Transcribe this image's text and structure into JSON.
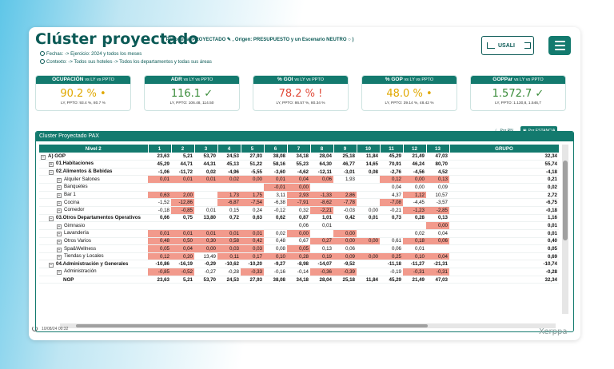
{
  "header": {
    "title": "Clúster proyectado",
    "subtitle": "( Panorama: PROYECTADO ✎ , Origen: PRESUPUESTO y un Escenario NEUTRO ○ )",
    "fechas": "Fechas: -> Ejercicio: 2024 y todos los meses",
    "contexto": "Contexto: -> Todos sus hoteles -> Todos los departamentos y todas sus áreas",
    "user_label": "USALI"
  },
  "kpis": [
    {
      "label": "OCUPACIÓN",
      "sub": "vs LY vs PPTO",
      "value": "90.2 %",
      "mark": "•",
      "color": "#e0a800",
      "note": "LY, PPTO: 93.4 %, 80.7 %"
    },
    {
      "label": "ADR",
      "sub": "vs LY vs PPTO",
      "value": "116.1",
      "mark": "✓",
      "color": "#3a8c3a",
      "note": "LY, PPTO: 106.48, 114.50"
    },
    {
      "label": "% GOI",
      "sub": "vs LY vs PPTO",
      "value": "78.2 %",
      "mark": "!",
      "color": "#e04b3a",
      "note": "LY, PPTO: 86.57 %, 80.34 %"
    },
    {
      "label": "% GOP",
      "sub": "vs LY vs PPTO",
      "value": "48.0 %",
      "mark": "•",
      "color": "#e0a800",
      "note": "LY, PPTO: 39.14 %, 48.42 %"
    },
    {
      "label": "GOPPar",
      "sub": "vs LY vs PPTO",
      "value": "1.572.7",
      "mark": "✓",
      "color": "#3a8c3a",
      "note": "LY, PPTO: 1.130,8, 1.546,7"
    }
  ],
  "panel": {
    "title": "Cluster Proyectado PAX",
    "toggle_rn": "Por RN",
    "toggle_estancia": "Por ESTANCIA"
  },
  "table": {
    "columns": [
      "Nivel 2",
      "1",
      "2",
      "3",
      "4",
      "5",
      "6",
      "7",
      "8",
      "9",
      "10",
      "11",
      "12",
      "13",
      "GRUPO"
    ],
    "rows": [
      {
        "label": "A) GOP",
        "pm": "−",
        "level": 1,
        "bold": true,
        "values": [
          "23,63",
          "5,21",
          "53,70",
          "24,53",
          "27,93",
          "38,08",
          "34,18",
          "28,04",
          "25,18",
          "11,84",
          "45,29",
          "21,49",
          "47,03",
          "32,34"
        ],
        "neg": []
      },
      {
        "label": "01.Habitaciones",
        "pm": "+",
        "level": 2,
        "bold": true,
        "values": [
          "45,29",
          "44,71",
          "44,31",
          "45,13",
          "51,22",
          "58,16",
          "55,23",
          "64,30",
          "46,77",
          "14,65",
          "70,91",
          "46,24",
          "80,70",
          "55,74"
        ],
        "neg": []
      },
      {
        "label": "02.Alimentos & Bebidas",
        "pm": "−",
        "level": 2,
        "bold": true,
        "values": [
          "-1,06",
          "-11,72",
          "0,02",
          "-4,96",
          "-5,55",
          "-3,60",
          "-4,62",
          "-12,11",
          "-3,01",
          "0,08",
          "-2,76",
          "-4,56",
          "4,52",
          "-4,18"
        ],
        "neg": []
      },
      {
        "label": "Alquiler Salones",
        "pm": "+",
        "level": 3,
        "bold": false,
        "values": [
          "0,01",
          "0,01",
          "0,01",
          "0,02",
          "0,00",
          "0,01",
          "0,04",
          "0,06",
          "1,93",
          "",
          "0,12",
          "0,00",
          "0,13",
          "0,21"
        ],
        "neg": [
          0,
          1,
          2,
          3,
          4,
          5,
          6,
          7,
          10,
          11,
          12
        ]
      },
      {
        "label": "Banquetes",
        "pm": "+",
        "level": 3,
        "bold": false,
        "values": [
          "",
          "",
          "",
          "",
          "",
          "-0,01",
          "0,00",
          "",
          "",
          "",
          "0,04",
          "0,00",
          "0,09",
          "0,02"
        ],
        "neg": [
          5,
          6
        ]
      },
      {
        "label": "Bar 1",
        "pm": "+",
        "level": 3,
        "bold": false,
        "values": [
          "0,63",
          "2,00",
          "",
          "1,73",
          "1,75",
          "3,11",
          "2,93",
          "-1,33",
          "2,86",
          "",
          "4,37",
          "1,12",
          "10,57",
          "2,72"
        ],
        "neg": [
          0,
          1,
          3,
          4,
          6,
          7,
          8,
          11
        ]
      },
      {
        "label": "Cocina",
        "pm": "+",
        "level": 3,
        "bold": false,
        "values": [
          "-1,52",
          "-12,86",
          "",
          "-6,87",
          "-7,54",
          "-6,38",
          "-7,91",
          "-8,62",
          "-7,78",
          "",
          "-7,08",
          "-4,45",
          "-3,57",
          "-6,75"
        ],
        "neg": [
          1,
          3,
          4,
          6,
          7,
          8,
          10
        ]
      },
      {
        "label": "Comedor",
        "pm": "+",
        "level": 3,
        "bold": false,
        "values": [
          "-0,18",
          "-0,85",
          "0,01",
          "0,15",
          "0,24",
          "-0,12",
          "0,32",
          "-2,21",
          "-0,03",
          "0,00",
          "-0,21",
          "-1,23",
          "-2,85",
          "-0,18"
        ],
        "neg": [
          1,
          7,
          11,
          12
        ]
      },
      {
        "label": "03.Otros Departamentos Operativos",
        "pm": "−",
        "level": 2,
        "bold": true,
        "values": [
          "0,66",
          "0,75",
          "13,80",
          "0,72",
          "0,63",
          "0,62",
          "0,87",
          "1,01",
          "0,42",
          "0,01",
          "0,73",
          "0,28",
          "0,13",
          "1,16"
        ],
        "neg": []
      },
      {
        "label": "Gimnasio",
        "pm": "+",
        "level": 3,
        "bold": false,
        "values": [
          "",
          "",
          "",
          "",
          "",
          "",
          "0,06",
          "0,01",
          "",
          "",
          "",
          "",
          "0,00",
          "0,01"
        ],
        "neg": [
          12
        ]
      },
      {
        "label": "Lavandería",
        "pm": "+",
        "level": 3,
        "bold": false,
        "values": [
          "0,01",
          "0,01",
          "0,01",
          "0,01",
          "0,01",
          "0,02",
          "0,00",
          "",
          "0,00",
          "",
          "",
          "0,02",
          "0,04",
          "0,01"
        ],
        "neg": [
          0,
          1,
          2,
          3,
          4,
          6,
          8
        ]
      },
      {
        "label": "Otros Varios",
        "pm": "+",
        "level": 3,
        "bold": false,
        "values": [
          "0,48",
          "0,50",
          "0,30",
          "0,58",
          "0,42",
          "0,48",
          "0,67",
          "0,27",
          "0,00",
          "0,00",
          "0,61",
          "0,18",
          "0,06",
          "0,40"
        ],
        "neg": [
          0,
          1,
          2,
          3,
          4,
          7,
          8,
          9,
          11,
          12
        ]
      },
      {
        "label": "Spa&Wellness",
        "pm": "+",
        "level": 3,
        "bold": false,
        "values": [
          "0,05",
          "0,04",
          "0,00",
          "0,03",
          "0,03",
          "0,08",
          "0,05",
          "0,13",
          "0,06",
          "",
          "0,06",
          "0,01",
          "",
          "0,05"
        ],
        "neg": [
          0,
          1,
          2,
          3,
          4,
          6
        ]
      },
      {
        "label": "Tiendas y Locales",
        "pm": "+",
        "level": 3,
        "bold": false,
        "values": [
          "0,12",
          "0,20",
          "13,49",
          "0,11",
          "0,17",
          "0,10",
          "0,28",
          "0,19",
          "0,09",
          "0,00",
          "0,25",
          "0,10",
          "0,04",
          "0,69"
        ],
        "neg": [
          0,
          1,
          3,
          4,
          5,
          6,
          7,
          8,
          9,
          10,
          11,
          12
        ]
      },
      {
        "label": "04.Administración y Generales",
        "pm": "−",
        "level": 2,
        "bold": true,
        "values": [
          "-10,86",
          "-16,19",
          "-0,29",
          "-10,62",
          "-10,20",
          "-9,27",
          "-8,98",
          "-14,07",
          "-9,52",
          "",
          "-11,18",
          "-11,27",
          "-21,31",
          "-10,74"
        ],
        "neg": []
      },
      {
        "label": "Administración",
        "pm": "+",
        "level": 3,
        "bold": false,
        "values": [
          "-0,85",
          "-0,52",
          "-0,27",
          "-0,28",
          "-0,33",
          "-0,16",
          "-0,14",
          "-0,36",
          "-0,39",
          "",
          "-0,19",
          "-0,31",
          "-0,31",
          "-0,28"
        ],
        "neg": [
          0,
          1,
          4,
          7,
          8,
          11,
          12
        ]
      }
    ],
    "total": {
      "label": "NOP",
      "values": [
        "23,63",
        "5,21",
        "53,70",
        "24,53",
        "27,93",
        "38,08",
        "34,18",
        "28,04",
        "25,18",
        "11,84",
        "45,29",
        "21,49",
        "47,03",
        "32,34"
      ]
    }
  },
  "footer": {
    "timestamp": "10/08/24 00:32",
    "brand": "Xerppa"
  }
}
